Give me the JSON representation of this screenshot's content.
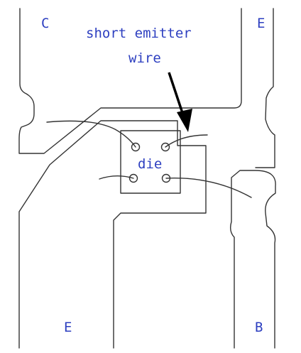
{
  "labels": {
    "collector": "C",
    "emitter_top": "E",
    "emitter_bottom": "E",
    "base": "B",
    "callout_line1": "short emitter",
    "callout_line2": "wire",
    "die": "die"
  },
  "colors": {
    "ink": "#333333",
    "label": "#2d3fc0",
    "arrow": "#000000",
    "background": "#ffffff"
  }
}
